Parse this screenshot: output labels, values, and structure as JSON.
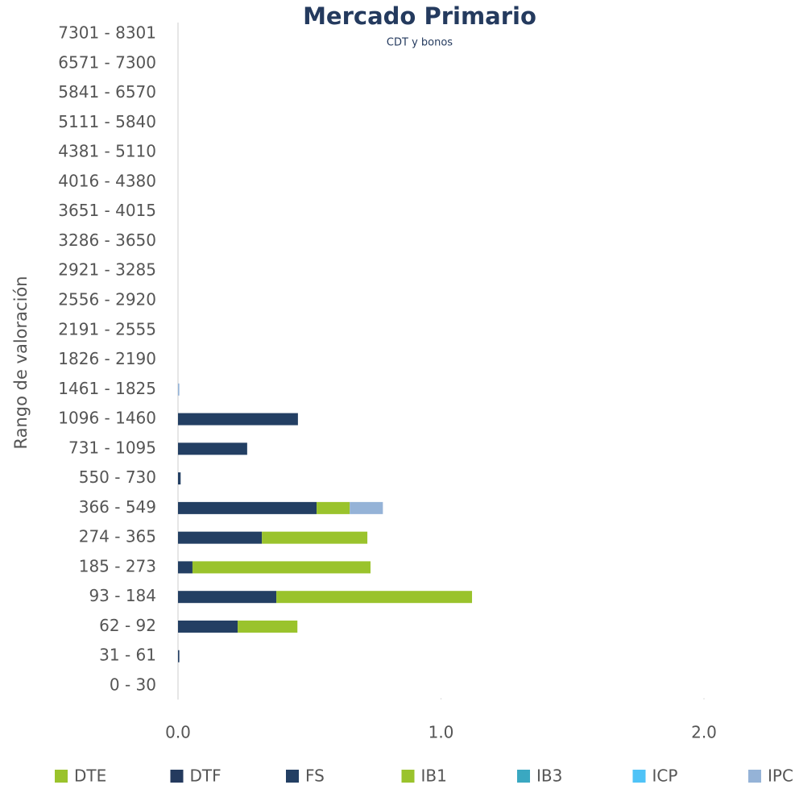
{
  "chart_data": {
    "type": "hbar_stacked",
    "title": "Mercado Primario",
    "subtitle": "CDT y bonos",
    "y_label": "Rango de valoración",
    "categories": [
      "0 - 30",
      "31 - 61",
      "62 - 92",
      "93 - 184",
      "185 - 273",
      "274 - 365",
      "366 - 549",
      "550 - 730",
      "731 - 1095",
      "1096 - 1460",
      "1461 - 1825",
      "1826 - 2190",
      "2191 - 2555",
      "2556 - 2920",
      "2921 - 3285",
      "3286 - 3650",
      "3651 - 4015",
      "4016 - 4380",
      "4381 - 5110",
      "5111 - 5840",
      "5841 - 6570",
      "6571 - 7300",
      "7301 - 8301"
    ],
    "series": [
      {
        "name": "DTE",
        "color": "#9ac32c",
        "values": [
          0,
          0,
          0,
          0,
          0,
          0,
          0,
          0,
          0,
          0,
          0,
          0,
          0,
          0,
          0,
          0,
          0,
          0,
          0,
          0,
          0,
          0,
          0
        ]
      },
      {
        "name": "DTF",
        "color": "#243a5e",
        "values": [
          0,
          0,
          0,
          0,
          0,
          0,
          0,
          0,
          0,
          0,
          0,
          0,
          0,
          0,
          0,
          0,
          0,
          0,
          0,
          0,
          0,
          0,
          0
        ]
      },
      {
        "name": "FS",
        "color": "#233f63",
        "values": [
          0,
          0.005,
          0.227,
          0.374,
          0.055,
          0.319,
          0.527,
          0.01,
          0.263,
          0.456,
          0,
          0,
          0,
          0,
          0,
          0,
          0,
          0,
          0,
          0,
          0,
          0,
          0
        ]
      },
      {
        "name": "IB1",
        "color": "#9ac32c",
        "values": [
          0,
          0,
          0.227,
          0.744,
          0.677,
          0.401,
          0.126,
          0,
          0,
          0,
          0,
          0,
          0,
          0,
          0,
          0,
          0,
          0,
          0,
          0,
          0,
          0,
          0
        ]
      },
      {
        "name": "IB3",
        "color": "#3aa8c1",
        "values": [
          0,
          0,
          0,
          0,
          0,
          0,
          0,
          0,
          0,
          0,
          0,
          0,
          0,
          0,
          0,
          0,
          0,
          0,
          0,
          0,
          0,
          0,
          0
        ]
      },
      {
        "name": "ICP",
        "color": "#4fc3f7",
        "values": [
          0,
          0,
          0,
          0,
          0,
          0,
          0,
          0,
          0,
          0,
          0,
          0,
          0,
          0,
          0,
          0,
          0,
          0,
          0,
          0,
          0,
          0,
          0
        ]
      },
      {
        "name": "IPC",
        "color": "#95b3d7",
        "values": [
          0,
          0,
          0,
          0,
          0,
          0,
          0.126,
          0,
          0,
          0,
          0.005,
          0,
          0,
          0,
          0,
          0,
          0,
          0,
          0,
          0,
          0,
          0,
          0
        ]
      }
    ],
    "xlim": [
      0,
      2.3
    ],
    "xticks": [
      {
        "value": 0,
        "label": "0.0"
      },
      {
        "value": 1,
        "label": "1.0"
      },
      {
        "value": 2,
        "label": "2.0"
      }
    ]
  }
}
